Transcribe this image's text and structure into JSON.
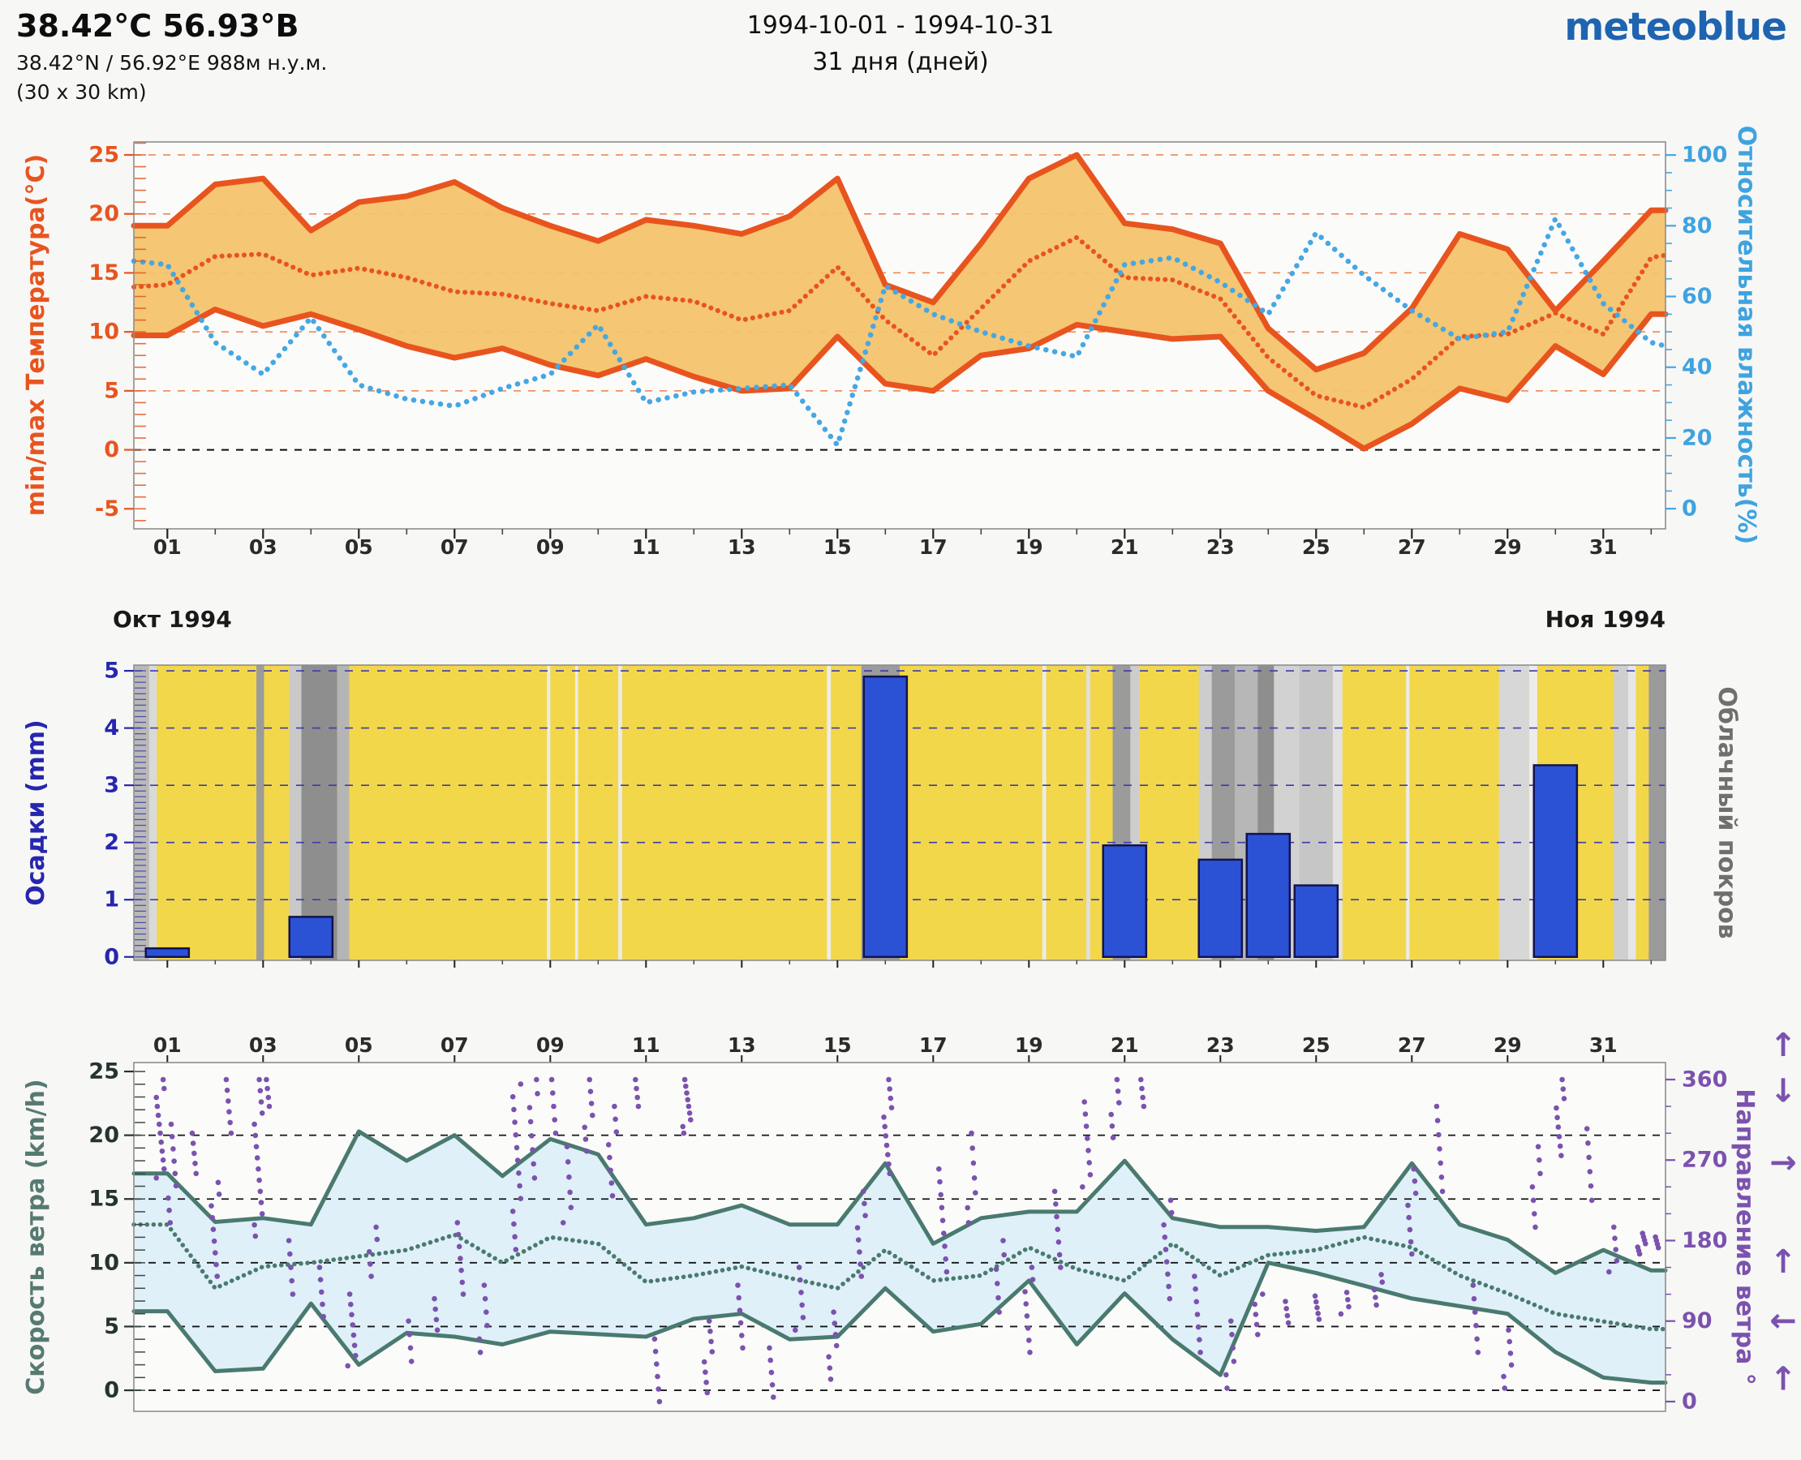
{
  "header": {
    "title": "38.42°С 56.93°В",
    "subtitle": "38.42°N / 56.92°E   988м н.у.м.",
    "area": "(30 x 30 km)",
    "date_range": "1994-10-01 - 1994-10-31",
    "days_label": "31 дня (дней)",
    "logo": "meteoblue"
  },
  "months": {
    "left": "Окт 1994",
    "right": "Ноя 1994"
  },
  "colors": {
    "temp_line": "#E8541E",
    "temp_fill": "#F4C36B",
    "humidity": "#45A7E3",
    "precip_bar": "#2B52D4",
    "precip_bar_edge": "#13134E",
    "cloud_bg": "#F2D74A",
    "precip_grid": "#3B3BB0",
    "wind_line": "#4A7A6F",
    "wind_fill": "#DCEEF7",
    "direction": "#7B52AE",
    "frame": "#8E8E8E"
  },
  "x_axis": {
    "min": 0.3,
    "max": 32.3,
    "tick_days": [
      1,
      3,
      5,
      7,
      9,
      11,
      13,
      15,
      17,
      19,
      21,
      23,
      25,
      27,
      29,
      31
    ],
    "tick_labels": [
      "01",
      "03",
      "05",
      "07",
      "09",
      "11",
      "13",
      "15",
      "17",
      "19",
      "21",
      "23",
      "25",
      "27",
      "29",
      "31"
    ]
  },
  "chart_data": [
    {
      "type": "area",
      "name": "temperature-humidity",
      "ylabel_left": "min/max Температура(°C)",
      "ylabel_right": "Относительная влажность(%)",
      "left_axis": {
        "min": -6.7,
        "max": 26.1,
        "ticks": [
          25,
          20,
          15,
          10,
          5,
          0,
          -5
        ],
        "grid_orange": [
          25,
          20,
          15,
          10,
          5
        ],
        "grid_black": [
          0
        ]
      },
      "right_axis": {
        "min": -5.7,
        "max": 103.7,
        "ticks": [
          100,
          80,
          60,
          40,
          20,
          0
        ]
      },
      "x": [
        0.3,
        1,
        2,
        3,
        4,
        5,
        6,
        7,
        8,
        9,
        10,
        11,
        12,
        13,
        14,
        15,
        16,
        17,
        18,
        19,
        20,
        21,
        22,
        23,
        24,
        25,
        26,
        27,
        28,
        29,
        30,
        31,
        32,
        32.3
      ],
      "series": [
        {
          "name": "t_max",
          "values": [
            19,
            19,
            22.5,
            23,
            18.6,
            21,
            21.5,
            22.7,
            20.5,
            19,
            17.7,
            19.5,
            19,
            18.3,
            19.8,
            23,
            14,
            12.5,
            17.5,
            23,
            25,
            19.2,
            18.7,
            17.5,
            10.3,
            6.8,
            8.2,
            12,
            18.3,
            17,
            11.8,
            16,
            20.3,
            20.3
          ]
        },
        {
          "name": "t_min",
          "values": [
            9.7,
            9.7,
            11.9,
            10.5,
            11.5,
            10.2,
            8.8,
            7.8,
            8.6,
            7.2,
            6.3,
            7.7,
            6.2,
            5,
            5.2,
            9.6,
            5.6,
            5,
            8,
            8.6,
            10.6,
            10,
            9.4,
            9.6,
            5,
            2.6,
            0.1,
            2.2,
            5.2,
            4.2,
            8.8,
            6.4,
            11.5,
            11.5
          ]
        },
        {
          "name": "t_mean",
          "values": [
            13.8,
            14,
            16.4,
            16.6,
            14.8,
            15.4,
            14.6,
            13.4,
            13.2,
            12.4,
            11.8,
            13,
            12.6,
            11,
            11.8,
            15.5,
            11,
            8,
            12,
            16,
            18,
            14.6,
            14.4,
            12.8,
            7.8,
            4.6,
            3.6,
            6,
            9.6,
            9.8,
            11.6,
            9.8,
            16.3,
            16.5
          ]
        },
        {
          "name": "humidity",
          "axis": "right",
          "values": [
            70,
            69,
            47,
            38,
            54,
            35,
            31,
            29,
            34,
            38,
            52,
            30,
            33,
            34,
            35,
            18,
            63,
            55,
            50,
            46,
            43,
            69,
            71,
            64,
            55,
            78,
            66,
            56,
            48,
            50,
            82,
            58,
            47,
            46
          ]
        }
      ]
    },
    {
      "type": "bar",
      "name": "precipitation-cloud",
      "ylabel_left": "Осадки (mm)",
      "ylabel_right": "Облачный покров",
      "left_axis": {
        "min": -0.06,
        "max": 5.1,
        "ticks": [
          5,
          4,
          3,
          2,
          1,
          0
        ],
        "grid": [
          5,
          4,
          3,
          2,
          1
        ]
      },
      "bar_width": 0.9,
      "bars": [
        [
          1,
          0.15
        ],
        [
          4,
          0.7
        ],
        [
          16,
          4.9
        ],
        [
          21,
          1.95
        ],
        [
          23,
          1.7
        ],
        [
          24,
          2.15
        ],
        [
          25,
          1.25
        ],
        [
          30,
          3.35
        ]
      ],
      "cloud_bands": [
        [
          0.3,
          0.62,
          "#b9b9b9"
        ],
        [
          0.62,
          0.78,
          "#d9d9d9"
        ],
        [
          2.86,
          3.02,
          "#9b9b9b"
        ],
        [
          3.55,
          3.8,
          "#c9c9c9"
        ],
        [
          3.8,
          4.55,
          "#8e8e8e"
        ],
        [
          4.55,
          4.8,
          "#b5b5b5"
        ],
        [
          8.93,
          9.0,
          "#ececec"
        ],
        [
          9.52,
          9.58,
          "#ececec"
        ],
        [
          10.42,
          10.5,
          "#ececec"
        ],
        [
          14.78,
          14.86,
          "#ececec"
        ],
        [
          15.5,
          16.3,
          "#9b9b9b"
        ],
        [
          19.28,
          19.36,
          "#ececec"
        ],
        [
          20.2,
          20.28,
          "#e0e0e0"
        ],
        [
          20.75,
          21.12,
          "#9b9b9b"
        ],
        [
          21.12,
          21.3,
          "#cdcdcd"
        ],
        [
          22.55,
          22.82,
          "#cdcdcd"
        ],
        [
          22.82,
          23.3,
          "#9b9b9b"
        ],
        [
          23.3,
          23.78,
          "#b7b7b7"
        ],
        [
          23.78,
          24.12,
          "#8e8e8e"
        ],
        [
          24.12,
          24.65,
          "#d2d2d2"
        ],
        [
          24.65,
          25.35,
          "#c6c6c6"
        ],
        [
          25.35,
          25.55,
          "#e2e2e2"
        ],
        [
          26.88,
          26.95,
          "#ececec"
        ],
        [
          28.82,
          29.45,
          "#d7d7d7"
        ],
        [
          29.45,
          29.62,
          "#ececec"
        ],
        [
          31.22,
          31.52,
          "#cfcfcf"
        ],
        [
          31.52,
          31.68,
          "#e6e6e6"
        ],
        [
          31.95,
          32.3,
          "#9b9b9b"
        ]
      ]
    },
    {
      "type": "area",
      "name": "wind-speed-direction",
      "ylabel_left": "Скорость ветра (km/h)",
      "ylabel_right": "Направление ветра °",
      "left_axis": {
        "min": -1.65,
        "max": 25.7,
        "ticks": [
          25,
          20,
          15,
          10,
          5,
          0
        ],
        "grid": [
          20,
          15,
          10,
          5,
          0
        ]
      },
      "right_axis": {
        "min": -10.9,
        "max": 379,
        "ticks": [
          360,
          270,
          180,
          90,
          0
        ]
      },
      "x": [
        0.3,
        1,
        2,
        3,
        4,
        5,
        6,
        7,
        8,
        9,
        10,
        11,
        12,
        13,
        14,
        15,
        16,
        17,
        18,
        19,
        20,
        21,
        22,
        23,
        24,
        25,
        26,
        27,
        28,
        29,
        30,
        31,
        32,
        32.3
      ],
      "series": [
        {
          "name": "wind_max",
          "values": [
            17,
            17,
            13.2,
            13.5,
            13,
            20.3,
            18,
            20,
            16.8,
            19.7,
            18.5,
            13,
            13.5,
            14.5,
            13,
            13,
            17.8,
            11.5,
            13.5,
            14,
            14,
            18,
            13.5,
            12.8,
            12.8,
            12.5,
            12.8,
            17.8,
            13,
            11.8,
            9.2,
            11,
            9.4,
            9.4
          ]
        },
        {
          "name": "wind_min",
          "values": [
            6.2,
            6.2,
            1.5,
            1.7,
            6.8,
            2,
            4.5,
            4.2,
            3.6,
            4.6,
            4.4,
            4.2,
            5.6,
            6,
            4,
            4.2,
            8,
            4.6,
            5.2,
            8.6,
            3.6,
            7.6,
            4,
            1.2,
            10,
            9.2,
            8.2,
            7.2,
            6.6,
            6,
            3,
            1,
            0.6,
            0.6
          ]
        },
        {
          "name": "wind_mean",
          "values": [
            13,
            13,
            8,
            9.7,
            10,
            10.5,
            11,
            12.2,
            10,
            12,
            11.5,
            8.5,
            9,
            9.7,
            8.8,
            8,
            11,
            8.6,
            9,
            11.2,
            9.5,
            8.6,
            11.5,
            9,
            10.6,
            11,
            12,
            11.2,
            9,
            7.6,
            6,
            5.4,
            4.8,
            4.8
          ]
        }
      ],
      "direction_streaks": [
        [
          0.85,
          250,
          360,
          12
        ],
        [
          1.1,
          200,
          310,
          9
        ],
        [
          1.6,
          255,
          300,
          5
        ],
        [
          2.0,
          140,
          245,
          9
        ],
        [
          2.25,
          300,
          360,
          6
        ],
        [
          2.9,
          185,
          360,
          15
        ],
        [
          3.15,
          330,
          360,
          4
        ],
        [
          3.6,
          120,
          180,
          5
        ],
        [
          4.2,
          95,
          150,
          5
        ],
        [
          4.85,
          40,
          120,
          8
        ],
        [
          5.3,
          140,
          195,
          5
        ],
        [
          6.1,
          45,
          90,
          4
        ],
        [
          6.6,
          80,
          115,
          4
        ],
        [
          7.1,
          120,
          200,
          7
        ],
        [
          7.6,
          55,
          130,
          6
        ],
        [
          8.3,
          170,
          355,
          14
        ],
        [
          8.65,
          250,
          360,
          8
        ],
        [
          9.05,
          300,
          360,
          5
        ],
        [
          9.35,
          200,
          285,
          6
        ],
        [
          9.8,
          280,
          360,
          7
        ],
        [
          10.3,
          230,
          330,
          8
        ],
        [
          10.8,
          330,
          360,
          4
        ],
        [
          11.2,
          0,
          70,
          6
        ],
        [
          11.85,
          300,
          360,
          9
        ],
        [
          12.3,
          10,
          90,
          8
        ],
        [
          13.0,
          60,
          130,
          6
        ],
        [
          13.6,
          5,
          60,
          5
        ],
        [
          14.2,
          80,
          150,
          6
        ],
        [
          14.9,
          25,
          100,
          7
        ],
        [
          15.5,
          140,
          235,
          8
        ],
        [
          16.05,
          255,
          360,
          11
        ],
        [
          17.2,
          145,
          260,
          9
        ],
        [
          17.8,
          200,
          300,
          7
        ],
        [
          18.4,
          100,
          180,
          6
        ],
        [
          19.0,
          55,
          150,
          8
        ],
        [
          19.6,
          150,
          235,
          7
        ],
        [
          20.2,
          240,
          335,
          8
        ],
        [
          20.8,
          295,
          360,
          6
        ],
        [
          21.4,
          330,
          360,
          4
        ],
        [
          21.9,
          115,
          225,
          9
        ],
        [
          22.5,
          55,
          140,
          7
        ],
        [
          23.2,
          15,
          90,
          6
        ],
        [
          23.8,
          75,
          120,
          5
        ],
        [
          24.4,
          88,
          112,
          4
        ],
        [
          25.0,
          92,
          118,
          5
        ],
        [
          25.6,
          98,
          122,
          4
        ],
        [
          26.3,
          108,
          142,
          5
        ],
        [
          27.0,
          165,
          260,
          8
        ],
        [
          27.6,
          235,
          330,
          7
        ],
        [
          28.3,
          55,
          130,
          6
        ],
        [
          29.0,
          15,
          80,
          6
        ],
        [
          29.6,
          195,
          285,
          7
        ],
        [
          30.1,
          275,
          360,
          9
        ],
        [
          30.7,
          225,
          305,
          6
        ],
        [
          31.2,
          145,
          195,
          5
        ],
        [
          31.8,
          165,
          188,
          7
        ],
        [
          32.15,
          172,
          184,
          4
        ]
      ],
      "direction_arrows": [
        [
          "↑",
          398
        ],
        [
          "↓",
          347
        ],
        [
          "→",
          267
        ],
        [
          "↑",
          156
        ],
        [
          "←",
          90
        ],
        [
          "↑",
          25
        ]
      ]
    }
  ]
}
